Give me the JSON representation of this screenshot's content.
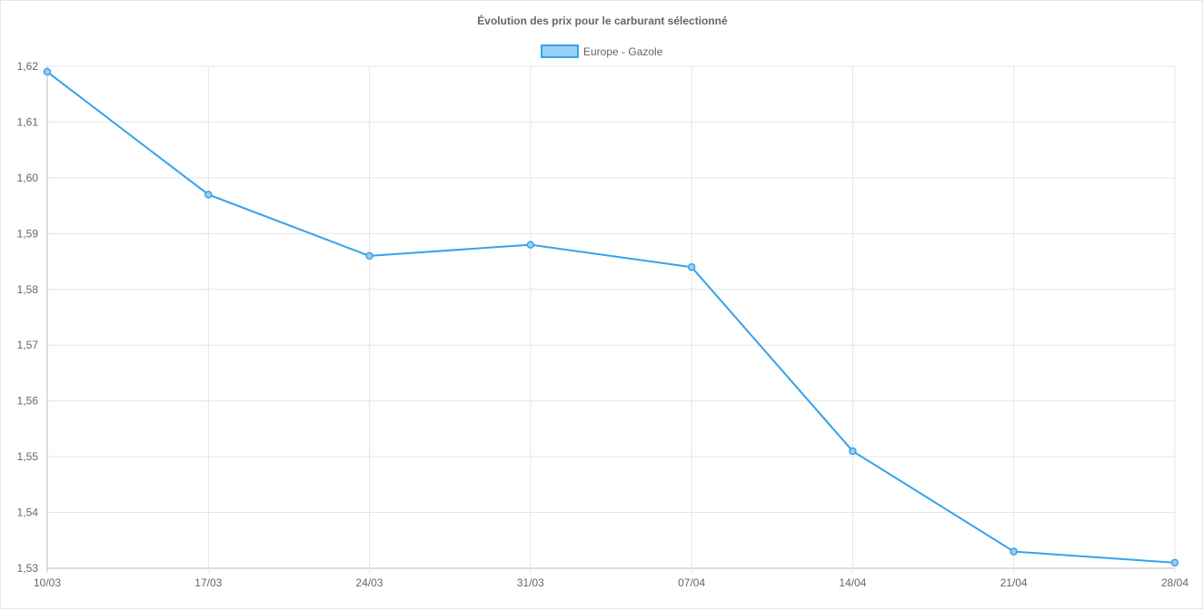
{
  "chart_data": {
    "type": "line",
    "title": "Évolution des prix pour le carburant sélectionné",
    "xlabel": "",
    "ylabel": "",
    "categories": [
      "10/03",
      "17/03",
      "24/03",
      "31/03",
      "07/04",
      "14/04",
      "21/04",
      "28/04"
    ],
    "series": [
      {
        "name": "Europe - Gazole",
        "values": [
          1.619,
          1.597,
          1.586,
          1.588,
          1.584,
          1.551,
          1.533,
          1.531
        ],
        "color": "#36a2eb",
        "fill_color": "#9ad0f5"
      }
    ],
    "ylim": [
      1.53,
      1.62
    ],
    "yticks": [
      "1,62",
      "1,61",
      "1,60",
      "1,59",
      "1,58",
      "1,57",
      "1,56",
      "1,55",
      "1,54",
      "1,53"
    ],
    "grid": true,
    "legend_position": "top-center"
  }
}
